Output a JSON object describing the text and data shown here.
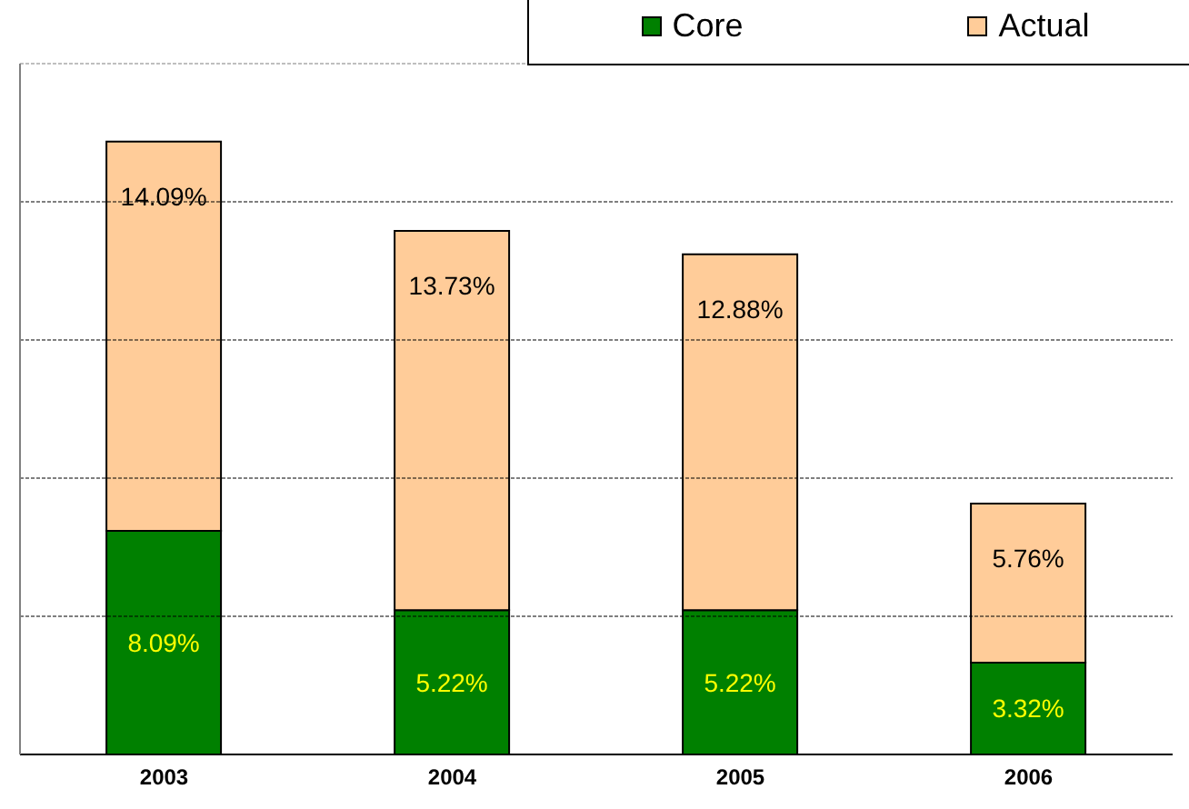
{
  "chart_data": {
    "type": "bar",
    "stacked": true,
    "categories": [
      "2003",
      "2004",
      "2005",
      "2006"
    ],
    "series": [
      {
        "name": "Core",
        "color": "#008000",
        "values": [
          8.09,
          5.22,
          5.22,
          3.32
        ],
        "value_labels": [
          "8.09%",
          "5.22%",
          "5.22%",
          "3.32%"
        ]
      },
      {
        "name": "Actual",
        "color": "#ffcc99",
        "values": [
          14.09,
          13.73,
          12.88,
          5.76
        ],
        "value_labels": [
          "14.09%",
          "13.73%",
          "12.88%",
          "5.76%"
        ]
      }
    ],
    "ylim": [
      0,
      25
    ],
    "yticks": [
      {
        "value": 0,
        "label": null
      },
      {
        "value": 5,
        "label": null
      },
      {
        "value": 10,
        "label": null
      },
      {
        "value": 15,
        "label": null
      },
      {
        "value": 20,
        "label": null
      },
      {
        "value": 25,
        "label": null
      }
    ],
    "tick_labels": "x",
    "grid": "y",
    "legend": "top right"
  }
}
